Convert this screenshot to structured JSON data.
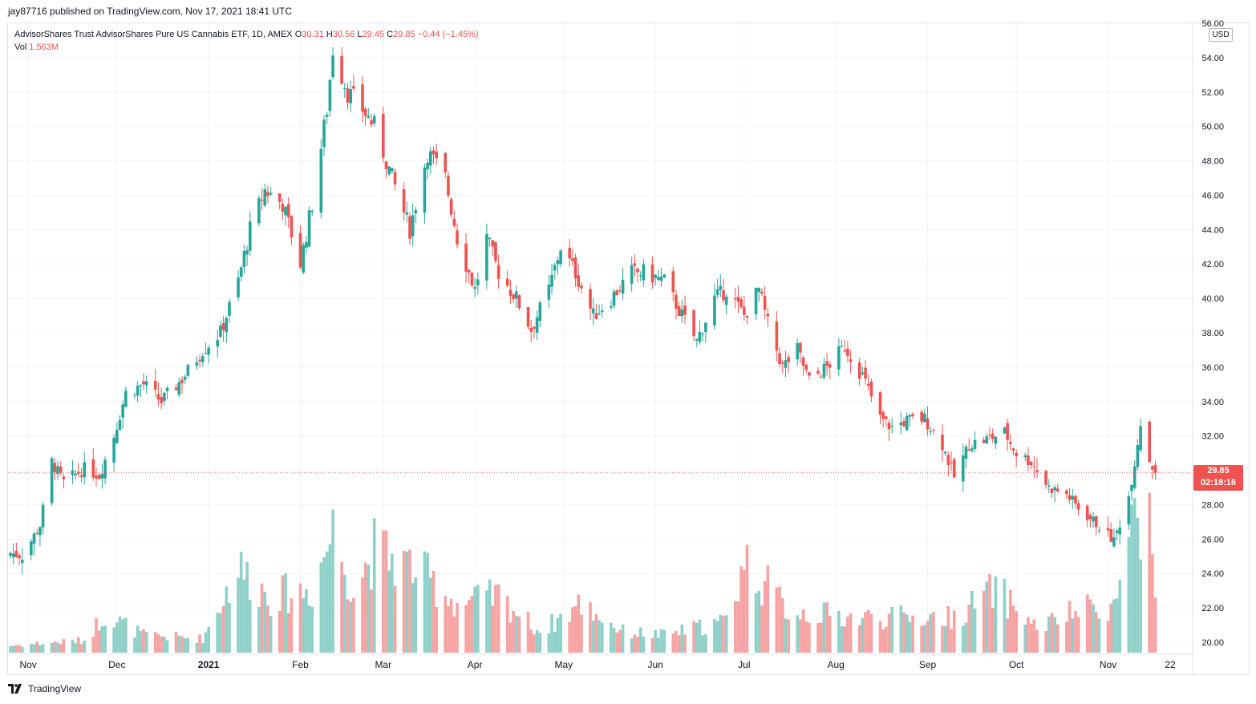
{
  "header": {
    "published": "jay87716 published on TradingView.com, Nov 17, 2021 18:41 UTC"
  },
  "legend": {
    "title": "AdvisorShares Trust AdvisorShares Pure US Cannabis ETF, 1D, AMEX",
    "o_label": "O",
    "o_value": "30.31",
    "h_label": "H",
    "h_value": "30.56",
    "l_label": "L",
    "l_value": "29.45",
    "c_label": "C",
    "c_value": "29.85",
    "change": "−0.44 (−1.45%)",
    "vol_label": "Vol",
    "vol_value": "1.563M"
  },
  "currency": "USD",
  "last_price": {
    "price": "29.85",
    "countdown": "02:18:16"
  },
  "footer": {
    "brand": "TradingView"
  },
  "colors": {
    "up": "#26a69a",
    "down": "#ef5350",
    "up_volume": "#8fd0c8",
    "down_volume": "#f5a3a3",
    "grid": "#f0f3fa"
  },
  "chart_data": {
    "type": "candlestick",
    "title": "AdvisorShares Trust AdvisorShares Pure US Cannabis ETF, 1D, AMEX",
    "xlabel": "",
    "ylabel": "",
    "ylim": [
      19.3,
      56
    ],
    "y_ticks": [
      "20.00",
      "22.00",
      "24.00",
      "26.00",
      "28.00",
      "30.00",
      "32.00",
      "34.00",
      "36.00",
      "38.00",
      "40.00",
      "42.00",
      "44.00",
      "46.00",
      "48.00",
      "50.00",
      "52.00",
      "54.00",
      "56.00"
    ],
    "x_ticks": [
      {
        "date": "2020-11-01",
        "label": "Nov"
      },
      {
        "date": "2020-12-01",
        "label": "Dec"
      },
      {
        "date": "2021-01-01",
        "label": "2021"
      },
      {
        "date": "2021-02-01",
        "label": "Feb"
      },
      {
        "date": "2021-03-01",
        "label": "Mar"
      },
      {
        "date": "2021-04-01",
        "label": "Apr"
      },
      {
        "date": "2021-05-01",
        "label": "May"
      },
      {
        "date": "2021-06-01",
        "label": "Jun"
      },
      {
        "date": "2021-07-01",
        "label": "Jul"
      },
      {
        "date": "2021-08-01",
        "label": "Aug"
      },
      {
        "date": "2021-09-01",
        "label": "Sep"
      },
      {
        "date": "2021-10-01",
        "label": "Oct"
      },
      {
        "date": "2021-11-01",
        "label": "Nov"
      },
      {
        "date": "2021-11-22",
        "label": "22"
      }
    ],
    "grid": true,
    "series": [
      {
        "name": "Price",
        "type": "candlestick",
        "close_anchors": [
          {
            "date": "2020-10-26",
            "close": 25.2
          },
          {
            "date": "2020-10-30",
            "close": 25.0
          },
          {
            "date": "2020-11-05",
            "close": 26.8
          },
          {
            "date": "2020-11-09",
            "close": 30.5
          },
          {
            "date": "2020-11-13",
            "close": 29.3
          },
          {
            "date": "2020-11-20",
            "close": 30.1
          },
          {
            "date": "2020-11-25",
            "close": 29.7
          },
          {
            "date": "2020-11-30",
            "close": 32.0
          },
          {
            "date": "2020-12-04",
            "close": 34.5
          },
          {
            "date": "2020-12-10",
            "close": 35.0
          },
          {
            "date": "2020-12-16",
            "close": 34.0
          },
          {
            "date": "2020-12-23",
            "close": 35.3
          },
          {
            "date": "2020-12-30",
            "close": 37.0
          },
          {
            "date": "2021-01-05",
            "close": 38.0
          },
          {
            "date": "2021-01-11",
            "close": 41.0
          },
          {
            "date": "2021-01-15",
            "close": 44.0
          },
          {
            "date": "2021-01-20",
            "close": 46.3
          },
          {
            "date": "2021-01-26",
            "close": 45.5
          },
          {
            "date": "2021-02-01",
            "close": 42.0
          },
          {
            "date": "2021-02-05",
            "close": 45.5
          },
          {
            "date": "2021-02-10",
            "close": 51.0
          },
          {
            "date": "2021-02-12",
            "close": 54.5
          },
          {
            "date": "2021-02-17",
            "close": 52.0
          },
          {
            "date": "2021-02-22",
            "close": 51.0
          },
          {
            "date": "2021-02-26",
            "close": 50.0
          },
          {
            "date": "2021-03-04",
            "close": 47.0
          },
          {
            "date": "2021-03-10",
            "close": 44.0
          },
          {
            "date": "2021-03-16",
            "close": 48.5
          },
          {
            "date": "2021-03-22",
            "close": 47.0
          },
          {
            "date": "2021-03-26",
            "close": 43.5
          },
          {
            "date": "2021-04-01",
            "close": 40.5
          },
          {
            "date": "2021-04-05",
            "close": 43.5
          },
          {
            "date": "2021-04-09",
            "close": 41.5
          },
          {
            "date": "2021-04-15",
            "close": 40.0
          },
          {
            "date": "2021-04-20",
            "close": 38.2
          },
          {
            "date": "2021-04-26",
            "close": 40.5
          },
          {
            "date": "2021-04-30",
            "close": 43.0
          },
          {
            "date": "2021-05-05",
            "close": 41.5
          },
          {
            "date": "2021-05-11",
            "close": 39.0
          },
          {
            "date": "2021-05-17",
            "close": 40.0
          },
          {
            "date": "2021-05-24",
            "close": 41.5
          },
          {
            "date": "2021-05-28",
            "close": 41.5
          },
          {
            "date": "2021-06-04",
            "close": 41.0
          },
          {
            "date": "2021-06-10",
            "close": 39.0
          },
          {
            "date": "2021-06-15",
            "close": 37.5
          },
          {
            "date": "2021-06-21",
            "close": 40.0
          },
          {
            "date": "2021-06-25",
            "close": 40.5
          },
          {
            "date": "2021-07-01",
            "close": 39.0
          },
          {
            "date": "2021-07-06",
            "close": 40.5
          },
          {
            "date": "2021-07-09",
            "close": 38.5
          },
          {
            "date": "2021-07-14",
            "close": 36.0
          },
          {
            "date": "2021-07-19",
            "close": 37.0
          },
          {
            "date": "2021-07-23",
            "close": 35.2
          },
          {
            "date": "2021-07-29",
            "close": 36.0
          },
          {
            "date": "2021-08-04",
            "close": 37.2
          },
          {
            "date": "2021-08-10",
            "close": 35.5
          },
          {
            "date": "2021-08-16",
            "close": 33.0
          },
          {
            "date": "2021-08-20",
            "close": 32.5
          },
          {
            "date": "2021-08-25",
            "close": 32.9
          },
          {
            "date": "2021-08-31",
            "close": 33.0
          },
          {
            "date": "2021-09-06",
            "close": 31.5
          },
          {
            "date": "2021-09-10",
            "close": 29.6
          },
          {
            "date": "2021-09-15",
            "close": 31.5
          },
          {
            "date": "2021-09-21",
            "close": 31.8
          },
          {
            "date": "2021-09-27",
            "close": 32.2
          },
          {
            "date": "2021-10-01",
            "close": 31.0
          },
          {
            "date": "2021-10-06",
            "close": 30.5
          },
          {
            "date": "2021-10-12",
            "close": 29.0
          },
          {
            "date": "2021-10-18",
            "close": 28.6
          },
          {
            "date": "2021-10-22",
            "close": 27.8
          },
          {
            "date": "2021-10-28",
            "close": 26.9
          },
          {
            "date": "2021-11-03",
            "close": 25.9
          },
          {
            "date": "2021-11-08",
            "close": 28.5
          },
          {
            "date": "2021-11-10",
            "close": 30.5
          },
          {
            "date": "2021-11-12",
            "close": 32.8
          },
          {
            "date": "2021-11-15",
            "close": 30.6
          },
          {
            "date": "2021-11-17",
            "close": 29.85
          }
        ]
      },
      {
        "name": "Vol",
        "type": "volume",
        "ylim_units": "M",
        "volume_anchors": [
          {
            "date": "2020-10-26",
            "vol": 0.2
          },
          {
            "date": "2020-11-20",
            "vol": 0.35
          },
          {
            "date": "2020-11-27",
            "vol": 1.1
          },
          {
            "date": "2020-12-10",
            "vol": 0.5
          },
          {
            "date": "2020-12-30",
            "vol": 0.4
          },
          {
            "date": "2021-01-11",
            "vol": 2.4
          },
          {
            "date": "2021-01-22",
            "vol": 1.6
          },
          {
            "date": "2021-02-05",
            "vol": 1.8
          },
          {
            "date": "2021-02-12",
            "vol": 3.5
          },
          {
            "date": "2021-02-19",
            "vol": 1.8
          },
          {
            "date": "2021-02-26",
            "vol": 2.9
          },
          {
            "date": "2021-03-12",
            "vol": 2.4
          },
          {
            "date": "2021-03-26",
            "vol": 1.4
          },
          {
            "date": "2021-04-09",
            "vol": 1.6
          },
          {
            "date": "2021-04-23",
            "vol": 0.6
          },
          {
            "date": "2021-05-07",
            "vol": 1.4
          },
          {
            "date": "2021-05-21",
            "vol": 0.6
          },
          {
            "date": "2021-06-04",
            "vol": 0.5
          },
          {
            "date": "2021-06-25",
            "vol": 0.9
          },
          {
            "date": "2021-07-01",
            "vol": 2.6
          },
          {
            "date": "2021-07-16",
            "vol": 1.2
          },
          {
            "date": "2021-08-06",
            "vol": 1.0
          },
          {
            "date": "2021-08-20",
            "vol": 1.0
          },
          {
            "date": "2021-09-10",
            "vol": 1.0
          },
          {
            "date": "2021-09-24",
            "vol": 1.8
          },
          {
            "date": "2021-10-08",
            "vol": 0.7
          },
          {
            "date": "2021-10-22",
            "vol": 1.2
          },
          {
            "date": "2021-11-04",
            "vol": 1.4
          },
          {
            "date": "2021-11-09",
            "vol": 4.1
          },
          {
            "date": "2021-11-11",
            "vol": 3.9
          },
          {
            "date": "2021-11-12",
            "vol": 2.2
          },
          {
            "date": "2021-11-15",
            "vol": 3.9
          },
          {
            "date": "2021-11-16",
            "vol": 2.1
          },
          {
            "date": "2021-11-17",
            "vol": 1.563
          }
        ]
      }
    ]
  }
}
